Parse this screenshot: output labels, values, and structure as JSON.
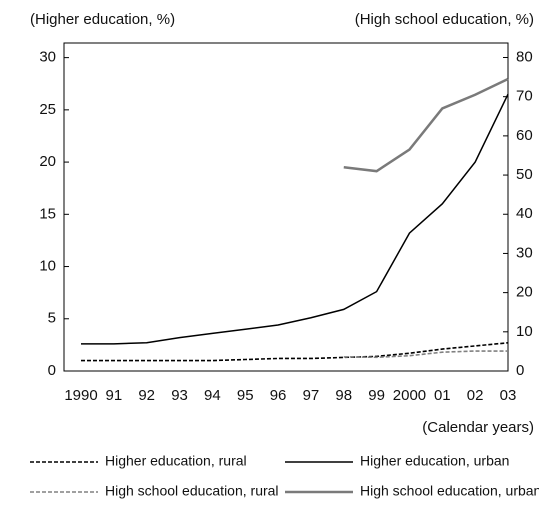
{
  "chart_data": {
    "type": "line",
    "y_label": "(Higher education, %)",
    "y2_label": "(High school education, %)",
    "x_label": "(Calendar years)",
    "categories": [
      "1990",
      "91",
      "92",
      "93",
      "94",
      "95",
      "96",
      "97",
      "98",
      "99",
      "2000",
      "01",
      "02",
      "03"
    ],
    "ylim": [
      0,
      31.4
    ],
    "yticks": [
      0,
      5,
      10,
      15,
      20,
      25,
      30
    ],
    "y2lim": [
      0,
      83.7
    ],
    "y2ticks": [
      0,
      10,
      20,
      30,
      40,
      50,
      60,
      70,
      80
    ],
    "series": [
      {
        "name": "Higher education, rural",
        "color": "#000000",
        "dash": true,
        "values": [
          1.0,
          1.0,
          1.0,
          1.0,
          1.0,
          1.1,
          1.2,
          1.2,
          1.3,
          1.4,
          1.7,
          2.1,
          2.4,
          2.7
        ]
      },
      {
        "name": "Higher education, urban",
        "color": "#000000",
        "dash": false,
        "values": [
          2.6,
          2.6,
          2.7,
          3.2,
          3.6,
          4.0,
          4.4,
          5.1,
          5.9,
          7.6,
          13.2,
          16.0,
          20.0,
          26.5
        ]
      },
      {
        "name": "High school education, rural",
        "color": "#808080",
        "dash": true,
        "axis": "y2",
        "values": [
          null,
          null,
          null,
          null,
          null,
          null,
          null,
          null,
          3.6,
          3.5,
          3.9,
          4.8,
          5.1,
          5.1
        ]
      },
      {
        "name": "High school education, urban",
        "color": "#7a7a7a",
        "dash": false,
        "axis": "y2",
        "values": [
          null,
          null,
          null,
          null,
          null,
          null,
          null,
          null,
          52,
          51,
          56.5,
          67,
          70.5,
          74.5
        ]
      }
    ]
  }
}
